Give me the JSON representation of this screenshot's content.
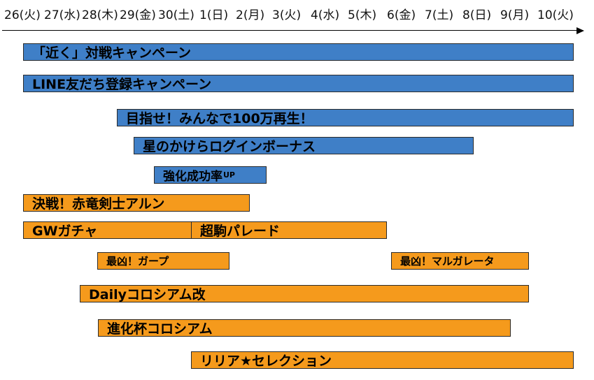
{
  "timeline": {
    "dates": [
      "26(火)",
      "27(水)",
      "28(木)",
      "29(金)",
      "30(土)",
      "1(日)",
      "2(月)",
      "3(火)",
      "4(水)",
      "5(木)",
      "6(金)",
      "7(土)",
      "8(日)",
      "9(月)",
      "10(火)"
    ]
  },
  "colors": {
    "blue": "#3f7fc7",
    "orange": "#f59a1c",
    "border": "#2b2b2b",
    "axis": "#000000"
  },
  "events": [
    {
      "label": "「近く」対戦キャンペーン",
      "color": "blue"
    },
    {
      "label": "LINE友だち登録キャンペーン",
      "color": "blue"
    },
    {
      "label": "目指せ！みんなで100万再生！",
      "color": "blue"
    },
    {
      "label": "星のかけらログインボーナス",
      "color": "blue"
    },
    {
      "label": "強化成功率",
      "label_suffix": "UP",
      "color": "blue"
    },
    {
      "label": "決戦！赤竜剣士アルン",
      "color": "orange"
    },
    {
      "label": "GWガチャ",
      "color": "orange"
    },
    {
      "label": "超駒パレード",
      "color": "orange"
    },
    {
      "label": "最凶！ガープ",
      "color": "orange"
    },
    {
      "label": "最凶！マルガレータ",
      "color": "orange"
    },
    {
      "label": "Dailyコロシアム改",
      "color": "orange"
    },
    {
      "label": "進化杯コロシアム",
      "color": "orange"
    },
    {
      "label": "リリア★セレクション",
      "color": "orange"
    }
  ]
}
